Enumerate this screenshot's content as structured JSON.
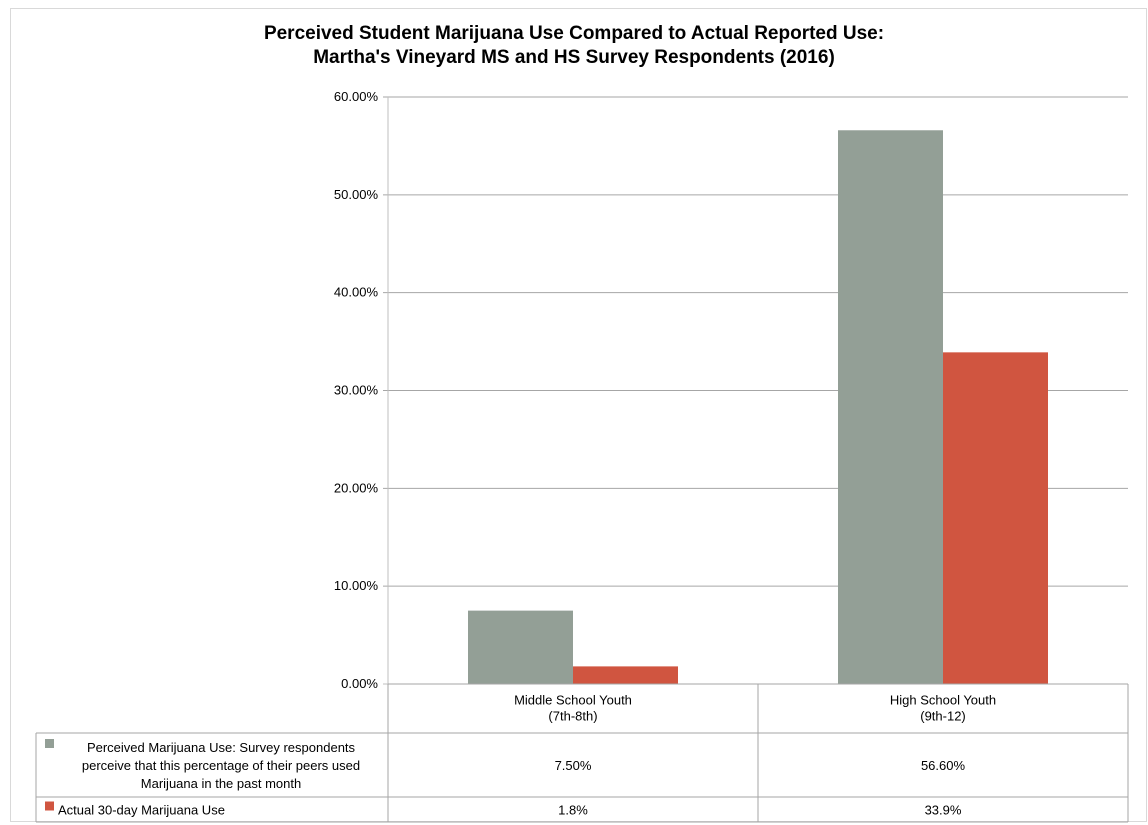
{
  "chart_data": {
    "type": "bar",
    "title": [
      "Perceived Student Marijuana Use Compared to Actual Reported Use:",
      "Martha's Vineyard MS and HS Survey Respondents (2016)"
    ],
    "categories": [
      [
        "Middle School Youth",
        "(7th-8th)"
      ],
      [
        "High School Youth",
        "(9th-12)"
      ]
    ],
    "series": [
      {
        "name": [
          "Perceived Marijuana Use: Survey respondents",
          "perceive that this percentage of their peers used",
          "Marijuana in the past month"
        ],
        "values": [
          7.5,
          56.6
        ],
        "labels": [
          "7.50%",
          "56.60%"
        ],
        "color": "#939f96"
      },
      {
        "name": [
          "Actual 30-day Marijuana Use"
        ],
        "values": [
          1.8,
          33.9
        ],
        "labels": [
          "1.8%",
          "33.9%"
        ],
        "color": "#d05540"
      }
    ],
    "ylim": [
      0,
      60
    ],
    "yticks": [
      "0.00%",
      "10.00%",
      "20.00%",
      "30.00%",
      "40.00%",
      "50.00%",
      "60.00%"
    ],
    "grid": true,
    "legend": "data-table"
  }
}
